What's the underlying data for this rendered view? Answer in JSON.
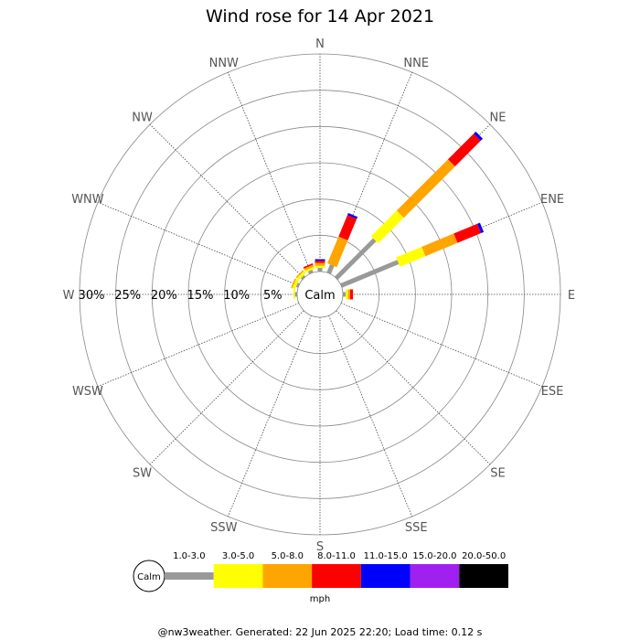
{
  "chart_data": {
    "type": "wind-rose",
    "title": "Wind rose for 14 Apr 2021",
    "directions": [
      "N",
      "NNE",
      "NE",
      "ENE",
      "E",
      "ESE",
      "SE",
      "SSE",
      "S",
      "SSW",
      "SW",
      "WSW",
      "W",
      "WNW",
      "NW",
      "NNW"
    ],
    "radial_ticks": [
      "5%",
      "10%",
      "15%",
      "20%",
      "25%",
      "30%"
    ],
    "radial_max_percent": 30,
    "calm_label": "Calm",
    "speed_bins": [
      {
        "label": "1.0-3.0",
        "color": "#999999"
      },
      {
        "label": "3.0-5.0",
        "color": "#ffff00"
      },
      {
        "label": "5.0-8.0",
        "color": "#ffa500"
      },
      {
        "label": "8.0-11.0",
        "color": "#ff0000"
      },
      {
        "label": "11.0-15.0",
        "color": "#0000ff"
      },
      {
        "label": "15.0-20.0",
        "color": "#a020f0"
      },
      {
        "label": "20.0-50.0",
        "color": "#000000"
      }
    ],
    "units": "mph",
    "series": [
      {
        "direction": "N",
        "values": [
          0.5,
          0.3,
          0.4,
          0.3,
          0.2,
          0,
          0
        ]
      },
      {
        "direction": "NNE",
        "values": [
          1.2,
          0,
          4.0,
          3.2,
          0.3,
          0,
          0
        ]
      },
      {
        "direction": "NE",
        "values": [
          7.5,
          5.0,
          10.0,
          5.0,
          0.4,
          0,
          0
        ]
      },
      {
        "direction": "ENE",
        "values": [
          8.5,
          3.8,
          4.8,
          3.5,
          0.4,
          0,
          0
        ]
      },
      {
        "direction": "E",
        "values": [
          0.4,
          0.3,
          0.3,
          0.4,
          0,
          0,
          0
        ]
      },
      {
        "direction": "ESE",
        "values": [
          0,
          0,
          0,
          0,
          0,
          0,
          0
        ]
      },
      {
        "direction": "SE",
        "values": [
          0,
          0,
          0,
          0,
          0,
          0,
          0
        ]
      },
      {
        "direction": "SSE",
        "values": [
          0,
          0,
          0,
          0,
          0,
          0,
          0
        ]
      },
      {
        "direction": "S",
        "values": [
          0,
          0,
          0,
          0,
          0,
          0,
          0
        ]
      },
      {
        "direction": "SSW",
        "values": [
          0,
          0,
          0,
          0,
          0,
          0,
          0
        ]
      },
      {
        "direction": "SW",
        "values": [
          0,
          0,
          0,
          0,
          0,
          0,
          0
        ]
      },
      {
        "direction": "WSW",
        "values": [
          0,
          0,
          0,
          0,
          0,
          0,
          0
        ]
      },
      {
        "direction": "W",
        "values": [
          0.3,
          0.2,
          0,
          0,
          0,
          0,
          0
        ]
      },
      {
        "direction": "WNW",
        "values": [
          0.3,
          0.4,
          0.2,
          0,
          0,
          0,
          0
        ]
      },
      {
        "direction": "NW",
        "values": [
          0.3,
          0.4,
          0.2,
          0,
          0,
          0,
          0
        ]
      },
      {
        "direction": "NNW",
        "values": [
          0.4,
          0.3,
          0.3,
          0.2,
          0,
          0,
          0
        ]
      }
    ]
  },
  "footer": "@nw3weather. Generated: 22 Jun 2025 22:20; Load time: 0.12 s"
}
